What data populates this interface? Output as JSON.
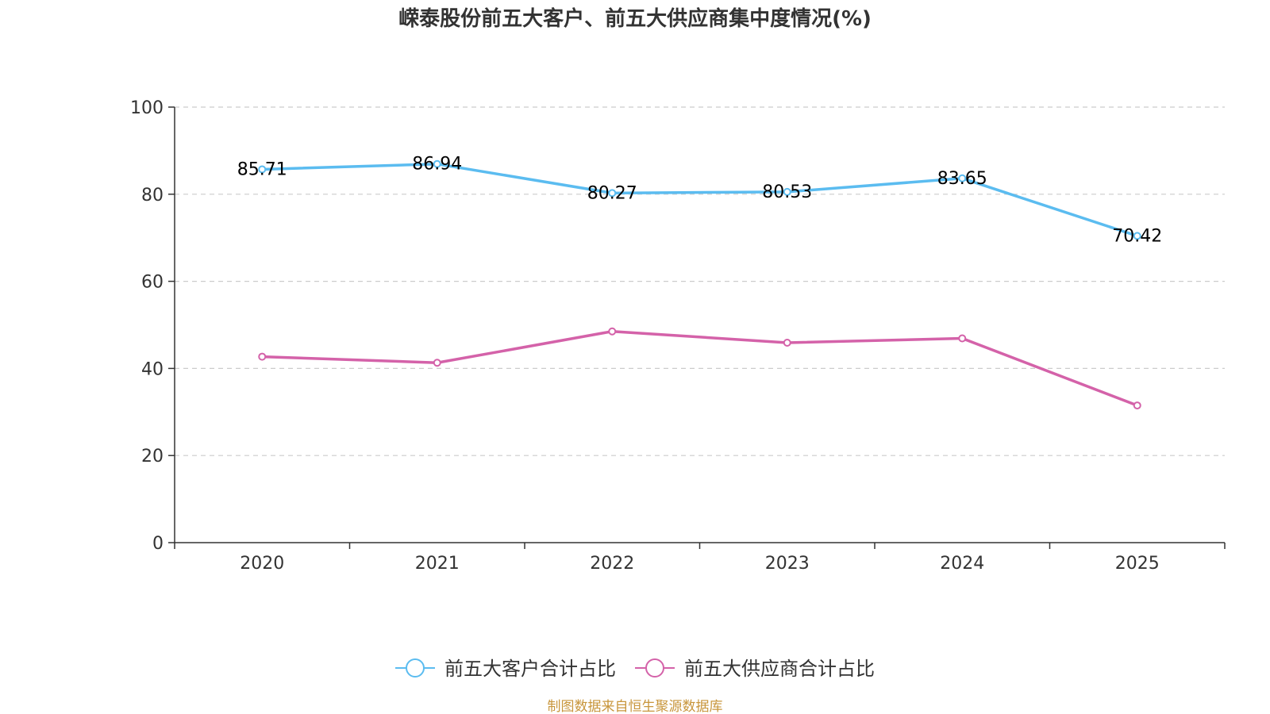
{
  "chart_data": {
    "type": "line",
    "title": "嵘泰股份前五大客户、前五大供应商集中度情况(%)",
    "categories": [
      "2020",
      "2021",
      "2022",
      "2023",
      "2024",
      "2025"
    ],
    "ylim": [
      0,
      100
    ],
    "yticks": [
      0,
      20,
      40,
      60,
      80,
      100
    ],
    "grid": true,
    "legend_position": "bottom-center",
    "series": [
      {
        "name": "前五大客户合计占比",
        "values": [
          85.71,
          86.94,
          80.27,
          80.53,
          83.65,
          70.42
        ],
        "labels": [
          "85.71",
          "86.94",
          "80.27",
          "80.53",
          "83.65",
          "70.42"
        ],
        "show_labels": true,
        "color": "#5bbcf0"
      },
      {
        "name": "前五大供应商合计占比",
        "values": [
          42.7,
          41.3,
          48.5,
          45.9,
          46.9,
          31.5
        ],
        "show_labels": false,
        "color": "#d462a9"
      }
    ]
  },
  "source": "制图数据来自恒生聚源数据库",
  "colors": {
    "axis": "#333333",
    "grid": "#cccccc",
    "source": "#c8963c"
  }
}
